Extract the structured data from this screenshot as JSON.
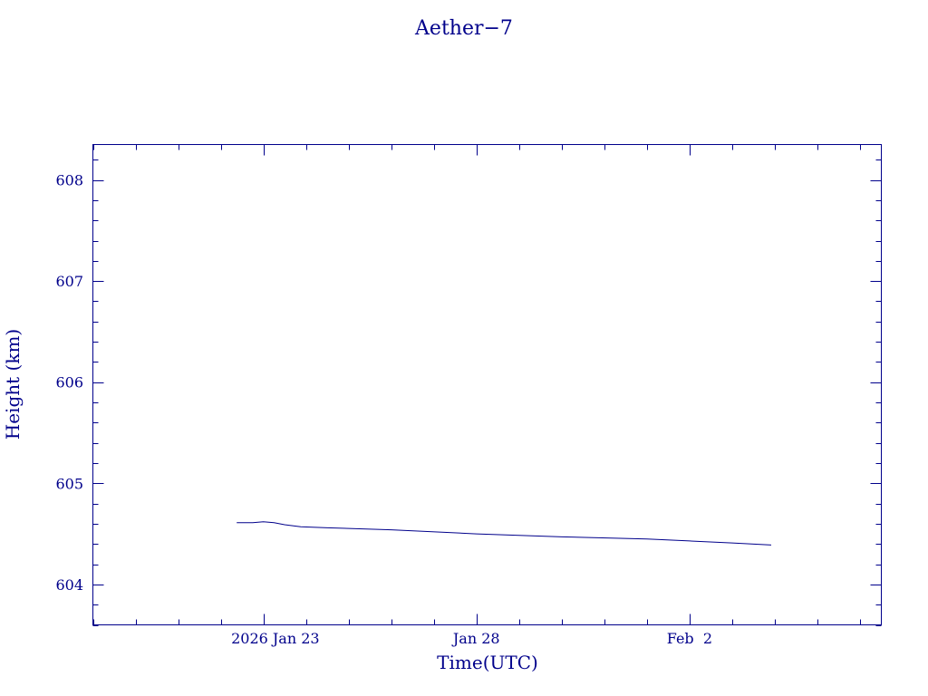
{
  "chart_data": {
    "type": "line",
    "title": "Aether−7",
    "xlabel": "Time(UTC)",
    "ylabel": "Height (km)",
    "xlim": [
      "2026-01-19T00:00",
      "2026-02-06T12:00"
    ],
    "ylim": [
      603.6,
      608.35
    ],
    "x_ticks": [
      {
        "value": "2026-01-23",
        "label": "2026 Jan 23"
      },
      {
        "value": "2026-01-28",
        "label": "Jan 28"
      },
      {
        "value": "2026-02-02",
        "label": "Feb  2"
      }
    ],
    "y_ticks": [
      {
        "value": 604,
        "label": "604"
      },
      {
        "value": 605,
        "label": "605"
      },
      {
        "value": 606,
        "label": "606"
      },
      {
        "value": 607,
        "label": "607"
      },
      {
        "value": 608,
        "label": "608"
      }
    ],
    "grid": false,
    "series": [
      {
        "x": [
          "2026-01-22T09:00",
          "2026-01-22T18:00",
          "2026-01-23T00:00",
          "2026-01-23T06:00",
          "2026-01-23T12:00",
          "2026-01-23T21:00",
          "2026-01-24T12:00",
          "2026-01-26T00:00",
          "2026-01-28T00:00",
          "2026-01-30T00:00",
          "2026-02-01T00:00",
          "2026-02-02T00:00",
          "2026-02-03T00:00",
          "2026-02-03T22:00"
        ],
        "y": [
          604.61,
          604.61,
          604.62,
          604.61,
          604.59,
          604.57,
          604.56,
          604.54,
          604.5,
          604.47,
          604.45,
          604.43,
          604.41,
          604.39
        ]
      }
    ]
  },
  "colors": {
    "ink": "#00008b",
    "background": "#ffffff"
  }
}
